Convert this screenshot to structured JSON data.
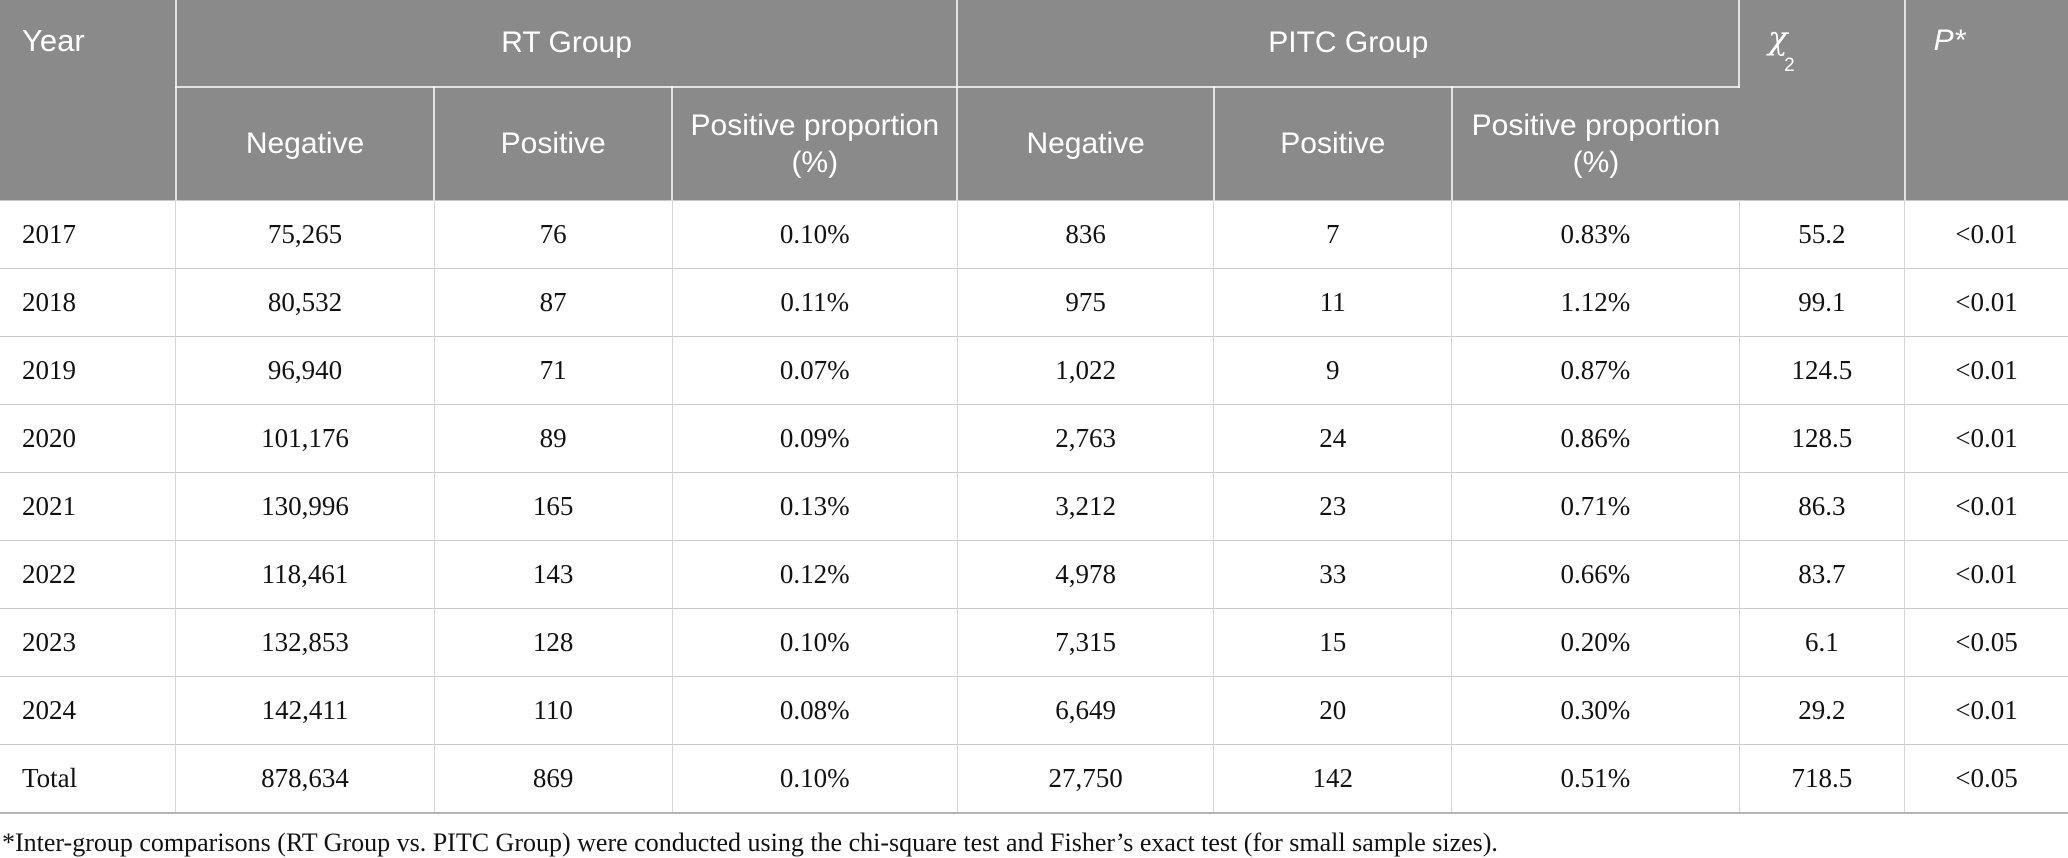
{
  "table": {
    "header": {
      "year": "Year",
      "rt_group": "RT Group",
      "pitc_group": "PITC Group",
      "chi": "χ",
      "chi_sub": "2",
      "p": "P*",
      "subheaders": [
        "Negative",
        "Positive",
        "Positive proportion (%)",
        "Negative",
        "Positive",
        "Positive proportion (%)"
      ]
    },
    "rows": [
      {
        "year": "2017",
        "cells": [
          "75,265",
          "76",
          "0.10%",
          "836",
          "7",
          "0.83%",
          "55.2",
          "<0.01"
        ]
      },
      {
        "year": "2018",
        "cells": [
          "80,532",
          "87",
          "0.11%",
          "975",
          "11",
          "1.12%",
          "99.1",
          "<0.01"
        ]
      },
      {
        "year": "2019",
        "cells": [
          "96,940",
          "71",
          "0.07%",
          "1,022",
          "9",
          "0.87%",
          "124.5",
          "<0.01"
        ]
      },
      {
        "year": "2020",
        "cells": [
          "101,176",
          "89",
          "0.09%",
          "2,763",
          "24",
          "0.86%",
          "128.5",
          "<0.01"
        ]
      },
      {
        "year": "2021",
        "cells": [
          "130,996",
          "165",
          "0.13%",
          "3,212",
          "23",
          "0.71%",
          "86.3",
          "<0.01"
        ]
      },
      {
        "year": "2022",
        "cells": [
          "118,461",
          "143",
          "0.12%",
          "4,978",
          "33",
          "0.66%",
          "83.7",
          "<0.01"
        ]
      },
      {
        "year": "2023",
        "cells": [
          "132,853",
          "128",
          "0.10%",
          "7,315",
          "15",
          "0.20%",
          "6.1",
          "<0.05"
        ]
      },
      {
        "year": "2024",
        "cells": [
          "142,411",
          "110",
          "0.08%",
          "6,649",
          "20",
          "0.30%",
          "29.2",
          "<0.01"
        ]
      },
      {
        "year": "Total",
        "cells": [
          "878,634",
          "869",
          "0.10%",
          "27,750",
          "142",
          "0.51%",
          "718.5",
          "<0.05"
        ]
      }
    ],
    "footnote": "*Inter-group comparisons (RT Group vs. PITC Group) were conducted using the chi-square test and Fisher’s exact test (for small sample sizes)."
  },
  "colors": {
    "header_bg": "#8a8a8a",
    "header_text": "#ffffff",
    "row_border": "#c9c9c9",
    "body_text": "#111111"
  }
}
